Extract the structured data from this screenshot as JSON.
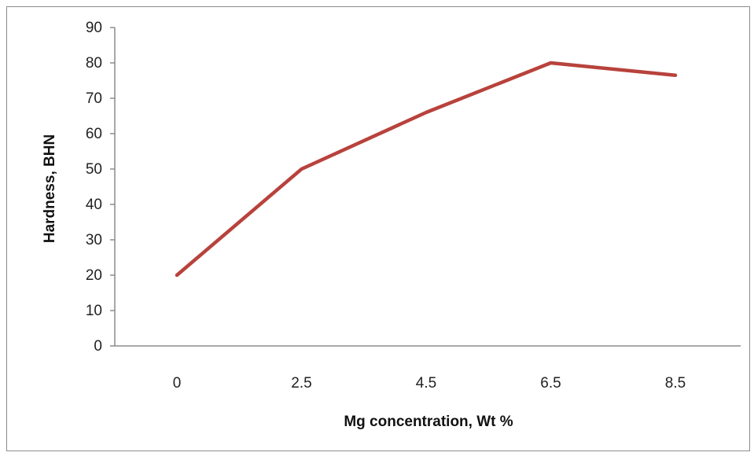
{
  "chart_data": {
    "type": "line",
    "title": "",
    "xlabel": "Mg concentration,  Wt %",
    "ylabel": "Hardness, BHN",
    "categories": [
      "0",
      "2.5",
      "4.5",
      "6.5",
      "8.5"
    ],
    "yticks": [
      "0",
      "10",
      "20",
      "30",
      "40",
      "50",
      "60",
      "70",
      "80",
      "90"
    ],
    "ylim": [
      0,
      90
    ],
    "grid": false,
    "legend": "none",
    "series": [
      {
        "values": [
          20,
          50,
          66,
          80,
          76.5
        ],
        "color": "#b8423c"
      }
    ]
  }
}
